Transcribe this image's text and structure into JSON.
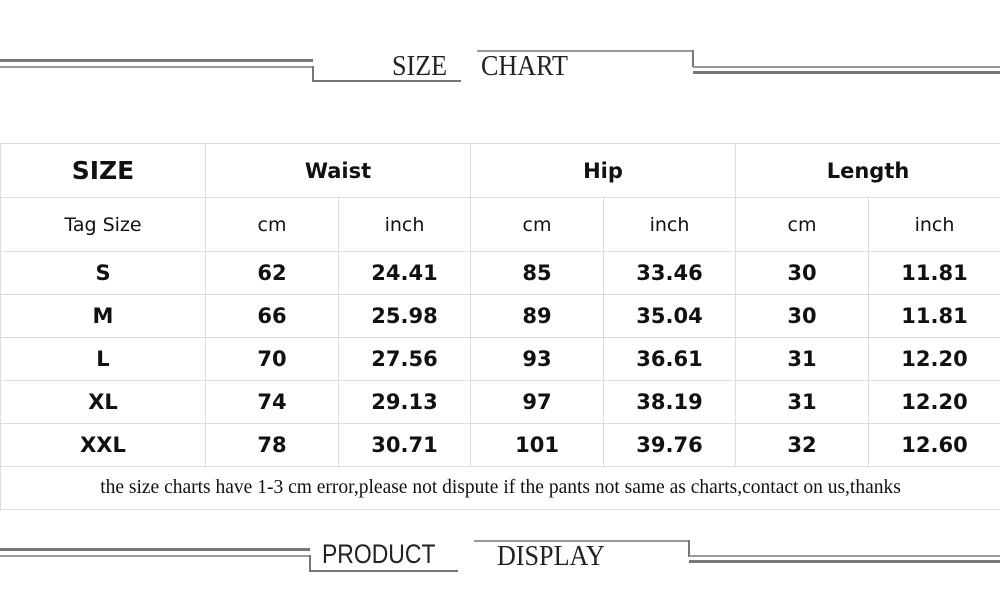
{
  "top_header": {
    "word1": "SIZE",
    "word2": "CHART"
  },
  "bottom_header": {
    "word1": "PRODUCT",
    "word2": "DISPLAY"
  },
  "table": {
    "groups": [
      "SIZE",
      "Waist",
      "Hip",
      "Length"
    ],
    "units": [
      "Tag Size",
      "cm",
      "inch",
      "cm",
      "inch",
      "cm",
      "inch"
    ],
    "rows": [
      [
        "S",
        "62",
        "24.41",
        "85",
        "33.46",
        "30",
        "11.81"
      ],
      [
        "M",
        "66",
        "25.98",
        "89",
        "35.04",
        "30",
        "11.81"
      ],
      [
        "L",
        "70",
        "27.56",
        "93",
        "36.61",
        "31",
        "12.20"
      ],
      [
        "XL",
        "74",
        "29.13",
        "97",
        "38.19",
        "31",
        "12.20"
      ],
      [
        "XXL",
        "78",
        "30.71",
        "101",
        "39.76",
        "32",
        "12.60"
      ]
    ],
    "note": "the size charts have 1-3 cm error,please not dispute if the pants not same as charts,contact on us,thanks"
  }
}
